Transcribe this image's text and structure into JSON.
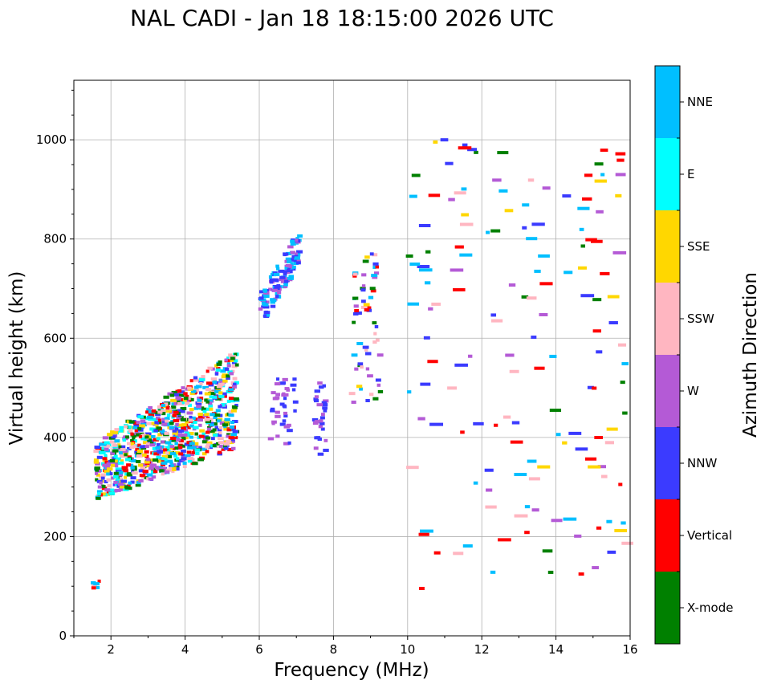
{
  "chart_data": {
    "type": "scatter",
    "title": "NAL CADI - Jan 18 18:15:00 2026 UTC",
    "xlabel": "Frequency (MHz)",
    "ylabel": "Virtual height (km)",
    "xlim": [
      1,
      16
    ],
    "ylim": [
      0,
      1120
    ],
    "xticks": [
      2,
      4,
      6,
      8,
      10,
      12,
      14,
      16
    ],
    "yticks": [
      0,
      200,
      400,
      600,
      800,
      1000
    ],
    "grid": true,
    "colorbar": {
      "label": "Azimuth Direction",
      "categories": [
        {
          "name": "X-mode",
          "color": "#008000"
        },
        {
          "name": "Vertical",
          "color": "#ff0000"
        },
        {
          "name": "NNW",
          "color": "#3b3bff"
        },
        {
          "name": "W",
          "color": "#b45ad6"
        },
        {
          "name": "SSW",
          "color": "#ffb6c1"
        },
        {
          "name": "SSE",
          "color": "#ffd700"
        },
        {
          "name": "E",
          "color": "#00ffff"
        },
        {
          "name": "NNE",
          "color": "#00bfff"
        }
      ]
    },
    "clusters": [
      {
        "name": "F-layer o-trace",
        "f_min": 1.6,
        "f_max": 5.4,
        "h_min": 270,
        "h_max": 580,
        "count": 900,
        "categories": [
          "NNE",
          "E",
          "SSE",
          "W",
          "SSW",
          "Vertical",
          "NNW",
          "X-mode"
        ]
      },
      {
        "name": "low echoes",
        "f_min": 1.5,
        "f_max": 1.7,
        "h_min": 90,
        "h_max": 115,
        "count": 6,
        "categories": [
          "NNE",
          "Vertical",
          "SSW"
        ]
      },
      {
        "name": "multi-hop NNW",
        "f_min": 6.0,
        "f_max": 7.1,
        "h_min": 620,
        "h_max": 820,
        "count": 130,
        "categories": [
          "NNW",
          "W",
          "NNE"
        ]
      },
      {
        "name": "NNW mid",
        "f_min": 6.3,
        "f_max": 7.0,
        "h_min": 385,
        "h_max": 525,
        "count": 40,
        "categories": [
          "NNW",
          "W"
        ]
      },
      {
        "name": "NNW 7.5",
        "f_min": 7.5,
        "f_max": 7.8,
        "h_min": 360,
        "h_max": 510,
        "count": 30,
        "categories": [
          "NNW",
          "W"
        ]
      },
      {
        "name": "8.5-9.2 cluster",
        "f_min": 8.5,
        "f_max": 9.3,
        "h_min": 470,
        "h_max": 770,
        "count": 60,
        "categories": [
          "NNW",
          "W",
          "Vertical",
          "NNE",
          "SSE",
          "SSW",
          "X-mode"
        ]
      },
      {
        "name": "sparse high-frequency",
        "f_min": 10.0,
        "f_max": 16.0,
        "h_min": 85,
        "h_max": 1015,
        "count": 150,
        "categories": [
          "SSE",
          "SSW",
          "W",
          "NNW",
          "Vertical",
          "X-mode",
          "NNE"
        ]
      }
    ]
  }
}
